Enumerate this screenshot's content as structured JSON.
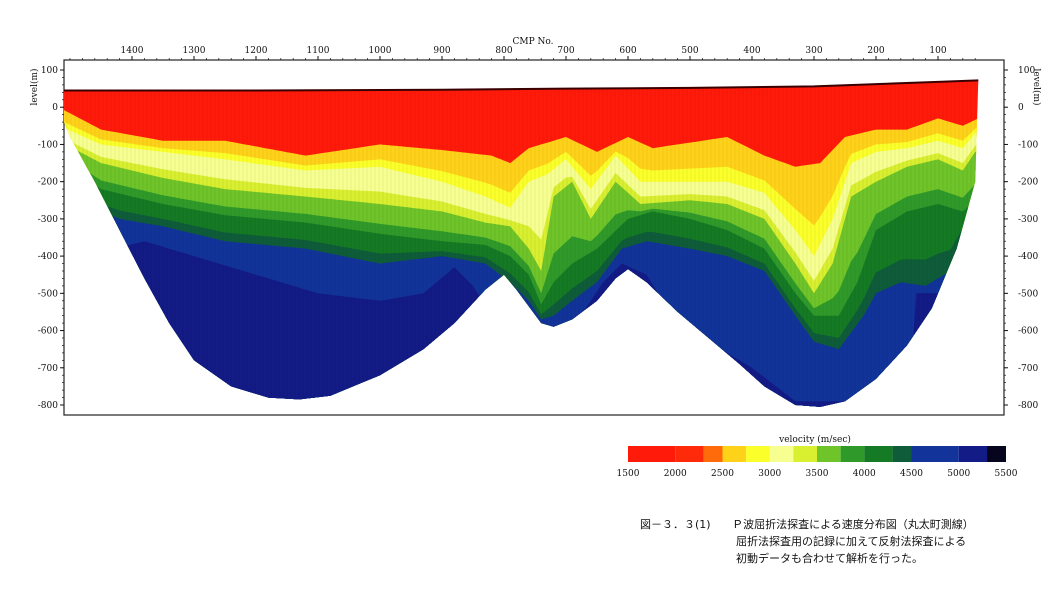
{
  "chart_data": {
    "type": "heatmap",
    "title": "",
    "xlabel": "CMP No.",
    "ylabel_left": "level(m)",
    "ylabel_right": "level(m)",
    "x_ticks": [
      1400,
      1300,
      1200,
      1100,
      1000,
      900,
      800,
      700,
      600,
      500,
      400,
      300,
      200,
      100
    ],
    "xlim": [
      1540,
      20
    ],
    "x_reversed": true,
    "y_ticks": [
      100,
      0,
      -100,
      -200,
      -300,
      -400,
      -500,
      -600,
      -700,
      -800
    ],
    "ylim": [
      -825,
      125
    ],
    "colorbar": {
      "label": "velocity (m/sec)",
      "ticks": [
        1500,
        2000,
        2500,
        3000,
        3500,
        4000,
        4500,
        5000,
        5500
      ],
      "range": [
        1500,
        5500
      ]
    },
    "color_scale": [
      {
        "v": 1500,
        "color": "#ff1a0a"
      },
      {
        "v": 2000,
        "color": "#ff2a0a"
      },
      {
        "v": 2300,
        "color": "#ff6a0a"
      },
      {
        "v": 2500,
        "color": "#ffd21a"
      },
      {
        "v": 2750,
        "color": "#fbff2a"
      },
      {
        "v": 3000,
        "color": "#f6ff90"
      },
      {
        "v": 3250,
        "color": "#d8f030"
      },
      {
        "v": 3500,
        "color": "#6fc42a"
      },
      {
        "v": 3750,
        "color": "#2f9a2a"
      },
      {
        "v": 4000,
        "color": "#157a24"
      },
      {
        "v": 4300,
        "color": "#0e5c3a"
      },
      {
        "v": 4500,
        "color": "#12339a"
      },
      {
        "v": 5000,
        "color": "#131b86"
      },
      {
        "v": 5300,
        "color": "#0a0a4a"
      },
      {
        "v": 5500,
        "color": "#05051e"
      }
    ],
    "surface_profile": [
      [
        1530,
        45
      ],
      [
        1200,
        45
      ],
      [
        900,
        47
      ],
      [
        700,
        50
      ],
      [
        500,
        52
      ],
      [
        300,
        56
      ],
      [
        100,
        68
      ],
      [
        35,
        72
      ]
    ],
    "base_profile": [
      [
        1530,
        45
      ],
      [
        1500,
        -80
      ],
      [
        1460,
        -200
      ],
      [
        1420,
        -330
      ],
      [
        1380,
        -460
      ],
      [
        1340,
        -580
      ],
      [
        1300,
        -680
      ],
      [
        1240,
        -750
      ],
      [
        1180,
        -780
      ],
      [
        1130,
        -785
      ],
      [
        1080,
        -775
      ],
      [
        1000,
        -720
      ],
      [
        930,
        -650
      ],
      [
        880,
        -580
      ],
      [
        830,
        -490
      ],
      [
        800,
        -450
      ],
      [
        780,
        -490
      ],
      [
        740,
        -580
      ],
      [
        720,
        -590
      ],
      [
        690,
        -570
      ],
      [
        650,
        -520
      ],
      [
        620,
        -460
      ],
      [
        600,
        -435
      ],
      [
        570,
        -470
      ],
      [
        520,
        -550
      ],
      [
        470,
        -620
      ],
      [
        420,
        -690
      ],
      [
        380,
        -750
      ],
      [
        330,
        -800
      ],
      [
        290,
        -805
      ],
      [
        250,
        -790
      ],
      [
        200,
        -730
      ],
      [
        150,
        -640
      ],
      [
        110,
        -540
      ],
      [
        70,
        -380
      ],
      [
        40,
        -200
      ],
      [
        35,
        72
      ]
    ],
    "velocity_boundaries": [
      {
        "v": 2500,
        "depths": [
          [
            1530,
            10
          ],
          [
            1450,
            -60
          ],
          [
            1350,
            -90
          ],
          [
            1250,
            -90
          ],
          [
            1120,
            -130
          ],
          [
            1000,
            -100
          ],
          [
            900,
            -115
          ],
          [
            820,
            -130
          ],
          [
            790,
            -150
          ],
          [
            760,
            -110
          ],
          [
            700,
            -80
          ],
          [
            650,
            -120
          ],
          [
            600,
            -80
          ],
          [
            560,
            -110
          ],
          [
            500,
            -95
          ],
          [
            440,
            -80
          ],
          [
            380,
            -130
          ],
          [
            330,
            -160
          ],
          [
            290,
            -150
          ],
          [
            250,
            -80
          ],
          [
            200,
            -60
          ],
          [
            150,
            -60
          ],
          [
            100,
            -30
          ],
          [
            60,
            -50
          ],
          [
            35,
            -30
          ]
        ]
      },
      {
        "v": 3000,
        "depths": [
          [
            1530,
            -40
          ],
          [
            1450,
            -100
          ],
          [
            1350,
            -120
          ],
          [
            1250,
            -140
          ],
          [
            1120,
            -170
          ],
          [
            1000,
            -160
          ],
          [
            900,
            -200
          ],
          [
            830,
            -240
          ],
          [
            790,
            -270
          ],
          [
            760,
            -200
          ],
          [
            730,
            -180
          ],
          [
            700,
            -140
          ],
          [
            660,
            -220
          ],
          [
            620,
            -130
          ],
          [
            580,
            -200
          ],
          [
            500,
            -200
          ],
          [
            440,
            -200
          ],
          [
            380,
            -230
          ],
          [
            330,
            -330
          ],
          [
            300,
            -400
          ],
          [
            270,
            -300
          ],
          [
            240,
            -150
          ],
          [
            200,
            -120
          ],
          [
            150,
            -110
          ],
          [
            100,
            -90
          ],
          [
            60,
            -110
          ],
          [
            35,
            -60
          ]
        ]
      },
      {
        "v": 3500,
        "depths": [
          [
            1530,
            -80
          ],
          [
            1450,
            -150
          ],
          [
            1350,
            -190
          ],
          [
            1250,
            -220
          ],
          [
            1120,
            -240
          ],
          [
            1000,
            -260
          ],
          [
            900,
            -280
          ],
          [
            830,
            -310
          ],
          [
            790,
            -320
          ],
          [
            760,
            -380
          ],
          [
            740,
            -440
          ],
          [
            720,
            -240
          ],
          [
            690,
            -200
          ],
          [
            660,
            -300
          ],
          [
            620,
            -200
          ],
          [
            580,
            -260
          ],
          [
            500,
            -250
          ],
          [
            440,
            -260
          ],
          [
            380,
            -300
          ],
          [
            330,
            -420
          ],
          [
            300,
            -500
          ],
          [
            270,
            -420
          ],
          [
            240,
            -240
          ],
          [
            200,
            -200
          ],
          [
            150,
            -160
          ],
          [
            100,
            -140
          ],
          [
            60,
            -170
          ],
          [
            40,
            -120
          ]
        ]
      },
      {
        "v": 4000,
        "depths": [
          [
            1500,
            -160
          ],
          [
            1450,
            -220
          ],
          [
            1350,
            -260
          ],
          [
            1250,
            -290
          ],
          [
            1120,
            -310
          ],
          [
            1000,
            -340
          ],
          [
            900,
            -360
          ],
          [
            830,
            -370
          ],
          [
            790,
            -400
          ],
          [
            760,
            -450
          ],
          [
            740,
            -530
          ],
          [
            720,
            -470
          ],
          [
            690,
            -420
          ],
          [
            650,
            -380
          ],
          [
            600,
            -300
          ],
          [
            560,
            -280
          ],
          [
            500,
            -300
          ],
          [
            440,
            -330
          ],
          [
            380,
            -380
          ],
          [
            330,
            -500
          ],
          [
            300,
            -560
          ],
          [
            260,
            -560
          ],
          [
            230,
            -470
          ],
          [
            200,
            -330
          ],
          [
            150,
            -280
          ],
          [
            100,
            -260
          ],
          [
            60,
            -280
          ],
          [
            40,
            -250
          ]
        ]
      },
      {
        "v": 4500,
        "depths": [
          [
            1480,
            -260
          ],
          [
            1420,
            -300
          ],
          [
            1350,
            -320
          ],
          [
            1250,
            -360
          ],
          [
            1120,
            -380
          ],
          [
            1000,
            -420
          ],
          [
            900,
            -400
          ],
          [
            830,
            -420
          ],
          [
            790,
            -470
          ],
          [
            760,
            -520
          ],
          [
            740,
            -570
          ],
          [
            720,
            -560
          ],
          [
            690,
            -520
          ],
          [
            650,
            -470
          ],
          [
            610,
            -380
          ],
          [
            570,
            -360
          ],
          [
            500,
            -380
          ],
          [
            440,
            -400
          ],
          [
            380,
            -440
          ],
          [
            330,
            -560
          ],
          [
            300,
            -630
          ],
          [
            260,
            -650
          ],
          [
            220,
            -560
          ],
          [
            200,
            -500
          ],
          [
            160,
            -470
          ],
          [
            120,
            -480
          ],
          [
            80,
            -440
          ],
          [
            50,
            -300
          ]
        ]
      },
      {
        "v": 5200,
        "depths": [
          [
            1430,
            -380
          ],
          [
            1380,
            -360
          ],
          [
            1300,
            -400
          ],
          [
            1200,
            -450
          ],
          [
            1100,
            -500
          ],
          [
            1000,
            -520
          ],
          [
            930,
            -500
          ],
          [
            880,
            -430
          ],
          [
            850,
            -480
          ],
          [
            820,
            -560
          ],
          [
            800,
            -600
          ],
          [
            700,
            -620
          ],
          [
            640,
            -470
          ],
          [
            610,
            -420
          ],
          [
            570,
            -450
          ],
          [
            540,
            -530
          ],
          [
            480,
            -620
          ],
          [
            400,
            -700
          ],
          [
            330,
            -790
          ],
          [
            250,
            -790
          ],
          [
            170,
            -700
          ],
          [
            140,
            -620
          ],
          [
            150,
            -560
          ],
          [
            180,
            -500
          ]
        ]
      }
    ]
  },
  "axis": {
    "x_title": "CMP No.",
    "left_title": "level(m)",
    "right_title": "level(m)",
    "colorbar_title": "velocity (m/sec)"
  },
  "caption": {
    "figure_number": "図－３．３(1)",
    "title": "Ｐ波屈折法探査による速度分布図（丸太町測線）",
    "line1": "屈折法探査用の記録に加えて反射法探査による",
    "line2": "初動データも合わせて解析を行った。"
  }
}
